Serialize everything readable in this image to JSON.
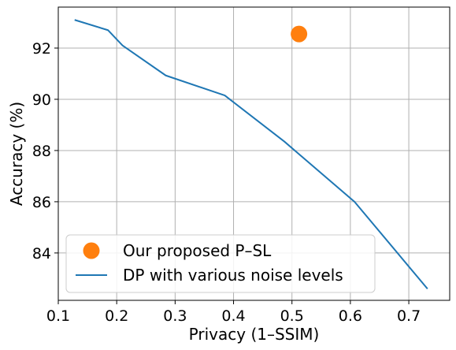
{
  "chart_data": {
    "type": "line",
    "title": "",
    "xlabel": "Privacy (1–SSIM)",
    "ylabel": "Accuracy (%)",
    "xlim": [
      0.1,
      0.77
    ],
    "ylim": [
      82.15,
      93.6
    ],
    "xticks": [
      0.1,
      0.2,
      0.3,
      0.4,
      0.5,
      0.6,
      0.7
    ],
    "xtick_labels": [
      "0.1",
      "0.2",
      "0.3",
      "0.4",
      "0.5",
      "0.6",
      "0.7"
    ],
    "yticks": [
      84,
      86,
      88,
      90,
      92
    ],
    "ytick_labels": [
      "84",
      "86",
      "88",
      "90",
      "92"
    ],
    "grid": true,
    "legend_position": "lower-left",
    "series": [
      {
        "name": "Our proposed P–SL",
        "kind": "scatter",
        "color": "#ff7f0e",
        "x": [
          0.512
        ],
        "y": [
          92.55
        ]
      },
      {
        "name": "DP with various noise levels",
        "kind": "line",
        "color": "#1f77b4",
        "x": [
          0.128,
          0.185,
          0.21,
          0.284,
          0.385,
          0.487,
          0.607,
          0.732
        ],
        "y": [
          93.1,
          92.7,
          92.1,
          90.93,
          90.15,
          88.35,
          86.0,
          82.6
        ]
      }
    ]
  }
}
